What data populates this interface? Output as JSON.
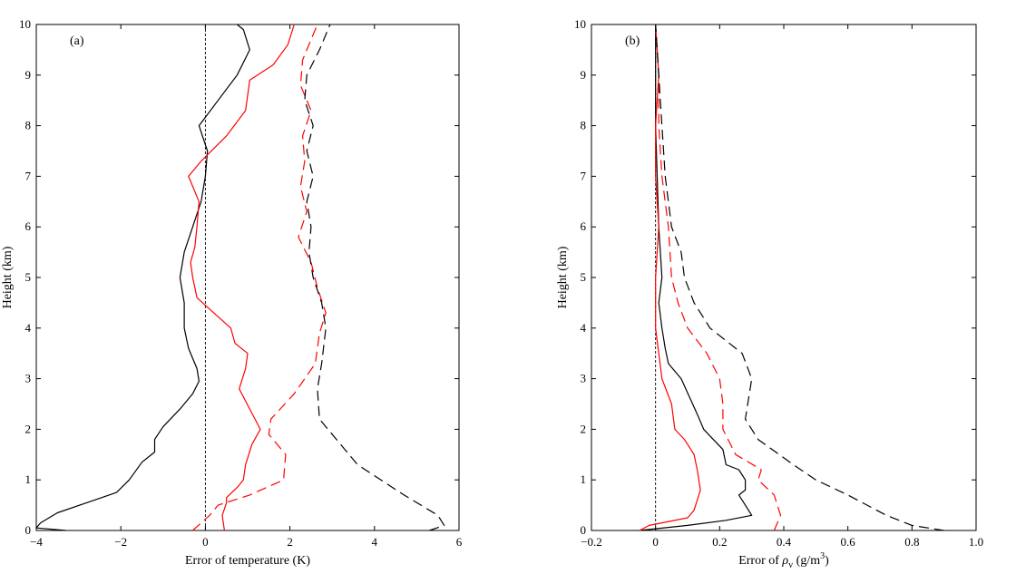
{
  "chart_data": [
    {
      "type": "line",
      "panel_label": "(a)",
      "xlabel": "Error of temperature (K)",
      "ylabel": "Height (km)",
      "xlim": [
        -4,
        6
      ],
      "ylim": [
        0,
        10
      ],
      "xticks": [
        "−4",
        "−2",
        "0",
        "2",
        "4",
        "6"
      ],
      "yticks": [
        "0",
        "1",
        "2",
        "3",
        "4",
        "5",
        "6",
        "7",
        "8",
        "9",
        "10"
      ],
      "grid": false,
      "legend": "none",
      "zero_line": 0,
      "series": [
        {
          "color": "#000000",
          "style": "solid",
          "points": [
            [
              -3.3,
              0.0
            ],
            [
              -4.0,
              0.05
            ],
            [
              -3.9,
              0.15
            ],
            [
              -3.5,
              0.35
            ],
            [
              -2.8,
              0.55
            ],
            [
              -2.1,
              0.75
            ],
            [
              -1.8,
              1.0
            ],
            [
              -1.5,
              1.35
            ],
            [
              -1.2,
              1.55
            ],
            [
              -1.2,
              1.8
            ],
            [
              -1.0,
              2.05
            ],
            [
              -0.6,
              2.4
            ],
            [
              -0.3,
              2.7
            ],
            [
              -0.15,
              2.95
            ],
            [
              -0.2,
              3.2
            ],
            [
              -0.4,
              3.6
            ],
            [
              -0.5,
              4.0
            ],
            [
              -0.5,
              4.5
            ],
            [
              -0.6,
              5.0
            ],
            [
              -0.5,
              5.5
            ],
            [
              -0.3,
              6.0
            ],
            [
              -0.1,
              6.5
            ],
            [
              0.0,
              7.0
            ],
            [
              0.05,
              7.5
            ],
            [
              -0.15,
              8.0
            ],
            [
              0.3,
              8.5
            ],
            [
              0.75,
              9.0
            ],
            [
              1.05,
              9.5
            ],
            [
              0.9,
              9.9
            ],
            [
              0.75,
              10.0
            ]
          ]
        },
        {
          "color": "#ff0000",
          "style": "solid",
          "points": [
            [
              0.45,
              0.0
            ],
            [
              0.4,
              0.3
            ],
            [
              0.5,
              0.55
            ],
            [
              0.5,
              0.65
            ],
            [
              0.75,
              0.85
            ],
            [
              0.9,
              1.0
            ],
            [
              0.95,
              1.3
            ],
            [
              1.1,
              1.7
            ],
            [
              1.3,
              2.0
            ],
            [
              1.05,
              2.4
            ],
            [
              0.8,
              2.8
            ],
            [
              0.95,
              3.2
            ],
            [
              1.0,
              3.5
            ],
            [
              0.7,
              3.7
            ],
            [
              0.6,
              4.0
            ],
            [
              0.2,
              4.3
            ],
            [
              -0.2,
              4.6
            ],
            [
              -0.3,
              5.0
            ],
            [
              -0.35,
              5.3
            ],
            [
              -0.25,
              5.6
            ],
            [
              -0.2,
              6.0
            ],
            [
              -0.15,
              6.5
            ],
            [
              -0.4,
              7.0
            ],
            [
              -0.1,
              7.3
            ],
            [
              0.5,
              7.8
            ],
            [
              0.95,
              8.3
            ],
            [
              1.05,
              8.9
            ],
            [
              1.6,
              9.2
            ],
            [
              1.95,
              9.6
            ],
            [
              2.1,
              10.0
            ]
          ]
        },
        {
          "color": "#ff0000",
          "style": "dashed",
          "points": [
            [
              -0.3,
              0.0
            ],
            [
              0.1,
              0.3
            ],
            [
              0.3,
              0.5
            ],
            [
              1.05,
              0.7
            ],
            [
              1.85,
              1.0
            ],
            [
              1.9,
              1.5
            ],
            [
              1.7,
              1.7
            ],
            [
              1.5,
              1.9
            ],
            [
              1.55,
              2.2
            ],
            [
              2.1,
              2.7
            ],
            [
              2.6,
              3.3
            ],
            [
              2.7,
              3.9
            ],
            [
              2.85,
              4.3
            ],
            [
              2.65,
              4.8
            ],
            [
              2.5,
              5.3
            ],
            [
              2.2,
              5.8
            ],
            [
              2.4,
              6.3
            ],
            [
              2.25,
              6.8
            ],
            [
              2.35,
              7.3
            ],
            [
              2.3,
              7.8
            ],
            [
              2.5,
              8.3
            ],
            [
              2.25,
              8.8
            ],
            [
              2.3,
              9.3
            ],
            [
              2.5,
              9.7
            ],
            [
              2.65,
              10.0
            ]
          ]
        },
        {
          "color": "#000000",
          "style": "dashed",
          "points": [
            [
              5.3,
              0.0
            ],
            [
              5.65,
              0.1
            ],
            [
              5.5,
              0.3
            ],
            [
              4.7,
              0.7
            ],
            [
              3.6,
              1.3
            ],
            [
              3.1,
              1.8
            ],
            [
              2.7,
              2.2
            ],
            [
              2.65,
              2.8
            ],
            [
              2.75,
              3.3
            ],
            [
              2.85,
              4.0
            ],
            [
              2.75,
              4.5
            ],
            [
              2.55,
              5.0
            ],
            [
              2.45,
              5.5
            ],
            [
              2.5,
              6.0
            ],
            [
              2.4,
              6.5
            ],
            [
              2.55,
              7.0
            ],
            [
              2.4,
              7.5
            ],
            [
              2.55,
              8.0
            ],
            [
              2.35,
              8.5
            ],
            [
              2.4,
              9.0
            ],
            [
              2.7,
              9.5
            ],
            [
              2.95,
              10.0
            ]
          ]
        }
      ]
    },
    {
      "type": "line",
      "panel_label": "(b)",
      "xlabel_prefix": "Error of ",
      "xlabel_symbol": "ρ",
      "xlabel_subscript": "v",
      "xlabel_unit": " (g/m",
      "xlabel_unit_sup": "3",
      "xlabel_unit_end": ")",
      "ylabel": "Height (km)",
      "xlim": [
        -0.2,
        1.0
      ],
      "ylim": [
        0,
        10
      ],
      "xticks": [
        "−0.2",
        "0",
        "0.2",
        "0.4",
        "0.6",
        "0.8",
        "1.0"
      ],
      "yticks": [
        "0",
        "1",
        "2",
        "3",
        "4",
        "5",
        "6",
        "7",
        "8",
        "9",
        "10"
      ],
      "grid": false,
      "legend": "none",
      "zero_line": 0,
      "series": [
        {
          "color": "#000000",
          "style": "solid",
          "points": [
            [
              -0.05,
              0.0
            ],
            [
              0.1,
              0.1
            ],
            [
              0.22,
              0.2
            ],
            [
              0.3,
              0.3
            ],
            [
              0.28,
              0.5
            ],
            [
              0.26,
              0.7
            ],
            [
              0.28,
              0.8
            ],
            [
              0.28,
              1.0
            ],
            [
              0.26,
              1.2
            ],
            [
              0.22,
              1.3
            ],
            [
              0.21,
              1.6
            ],
            [
              0.15,
              2.0
            ],
            [
              0.13,
              2.3
            ],
            [
              0.08,
              3.0
            ],
            [
              0.04,
              3.3
            ],
            [
              0.03,
              3.6
            ],
            [
              0.02,
              4.0
            ],
            [
              0.01,
              4.5
            ],
            [
              0.02,
              5.0
            ],
            [
              0.01,
              6.0
            ],
            [
              0.0,
              8.0
            ],
            [
              0.0,
              10.0
            ]
          ]
        },
        {
          "color": "#ff0000",
          "style": "solid",
          "points": [
            [
              -0.05,
              0.0
            ],
            [
              -0.02,
              0.1
            ],
            [
              0.02,
              0.15
            ],
            [
              0.1,
              0.25
            ],
            [
              0.12,
              0.4
            ],
            [
              0.14,
              0.8
            ],
            [
              0.13,
              1.2
            ],
            [
              0.12,
              1.5
            ],
            [
              0.09,
              1.8
            ],
            [
              0.06,
              2.0
            ],
            [
              0.05,
              2.5
            ],
            [
              0.02,
              3.0
            ],
            [
              0.01,
              3.5
            ],
            [
              0.0,
              4.0
            ],
            [
              0.0,
              5.0
            ],
            [
              0.01,
              6.0
            ],
            [
              0.0,
              7.0
            ],
            [
              0.0,
              8.0
            ],
            [
              0.01,
              9.0
            ],
            [
              0.0,
              10.0
            ]
          ]
        },
        {
          "color": "#ff0000",
          "style": "dashed",
          "points": [
            [
              0.37,
              0.0
            ],
            [
              0.39,
              0.3
            ],
            [
              0.38,
              0.5
            ],
            [
              0.37,
              0.7
            ],
            [
              0.32,
              1.0
            ],
            [
              0.33,
              1.2
            ],
            [
              0.25,
              1.5
            ],
            [
              0.21,
              2.0
            ],
            [
              0.21,
              2.5
            ],
            [
              0.2,
              3.0
            ],
            [
              0.16,
              3.5
            ],
            [
              0.1,
              4.0
            ],
            [
              0.07,
              4.5
            ],
            [
              0.05,
              5.0
            ],
            [
              0.04,
              6.0
            ],
            [
              0.02,
              7.0
            ],
            [
              0.01,
              8.0
            ],
            [
              0.01,
              9.0
            ],
            [
              0.0,
              10.0
            ]
          ]
        },
        {
          "color": "#000000",
          "style": "dashed",
          "points": [
            [
              0.9,
              0.0
            ],
            [
              0.8,
              0.1
            ],
            [
              0.72,
              0.3
            ],
            [
              0.6,
              0.7
            ],
            [
              0.5,
              1.0
            ],
            [
              0.43,
              1.3
            ],
            [
              0.32,
              1.8
            ],
            [
              0.28,
              2.2
            ],
            [
              0.3,
              3.0
            ],
            [
              0.27,
              3.5
            ],
            [
              0.17,
              4.0
            ],
            [
              0.12,
              4.5
            ],
            [
              0.09,
              5.0
            ],
            [
              0.08,
              5.5
            ],
            [
              0.05,
              6.0
            ],
            [
              0.03,
              7.0
            ],
            [
              0.02,
              8.0
            ],
            [
              0.01,
              9.0
            ],
            [
              0.0,
              10.0
            ]
          ]
        }
      ]
    }
  ]
}
